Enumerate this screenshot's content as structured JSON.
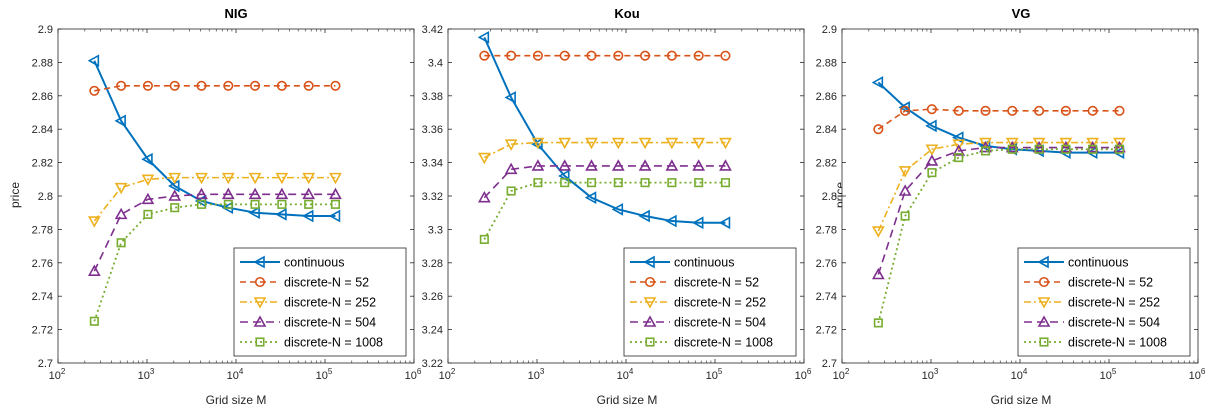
{
  "figure": {
    "background": "#ffffff"
  },
  "series_styles": [
    {
      "name": "continuous",
      "color": "#0072BD",
      "dash": "",
      "marker": "triangle-left",
      "width": 2.0
    },
    {
      "name": "discrete-N = 52",
      "color": "#D95319",
      "dash": "6,4",
      "marker": "circle",
      "width": 1.6
    },
    {
      "name": "discrete-N = 252",
      "color": "#EDB120",
      "dash": "7,3,2,3",
      "marker": "triangle-down",
      "width": 1.6
    },
    {
      "name": "discrete-N = 504",
      "color": "#7E2F8E",
      "dash": "8,5",
      "marker": "triangle-up",
      "width": 1.6
    },
    {
      "name": "discrete-N = 1008",
      "color": "#77AC30",
      "dash": "2,3",
      "marker": "square",
      "width": 1.8
    }
  ],
  "chart_data": [
    {
      "type": "line",
      "title": "NIG",
      "xlabel": "Grid size M",
      "ylabel": "price",
      "xscale": "log",
      "xlim": [
        100,
        1000000
      ],
      "ylim": [
        2.7,
        2.9
      ],
      "xticks": [
        100,
        1000,
        10000,
        100000,
        1000000
      ],
      "xticklabels": [
        "2",
        "3",
        "4",
        "5",
        "6"
      ],
      "yticks": [
        2.7,
        2.72,
        2.74,
        2.76,
        2.78,
        2.8,
        2.82,
        2.84,
        2.86,
        2.88,
        2.9
      ],
      "yticklabels": [
        "2.7",
        "2.72",
        "2.74",
        "2.76",
        "2.78",
        "2.8",
        "2.82",
        "2.84",
        "2.86",
        "2.88",
        "2.9"
      ],
      "grid": false,
      "legend_position": "bottom-right",
      "x": [
        256,
        512,
        1024,
        2048,
        4096,
        8192,
        16384,
        32768,
        65536,
        131072
      ],
      "series": [
        {
          "name": "continuous",
          "values": [
            2.881,
            2.845,
            2.822,
            2.806,
            2.797,
            2.793,
            2.79,
            2.789,
            2.788,
            2.788
          ]
        },
        {
          "name": "discrete-N = 52",
          "values": [
            2.863,
            2.866,
            2.866,
            2.866,
            2.866,
            2.866,
            2.866,
            2.866,
            2.866,
            2.866
          ]
        },
        {
          "name": "discrete-N = 252",
          "values": [
            2.785,
            2.805,
            2.81,
            2.811,
            2.811,
            2.811,
            2.811,
            2.811,
            2.811,
            2.811
          ]
        },
        {
          "name": "discrete-N = 504",
          "values": [
            2.755,
            2.789,
            2.798,
            2.8,
            2.801,
            2.801,
            2.801,
            2.801,
            2.801,
            2.801
          ]
        },
        {
          "name": "discrete-N = 1008",
          "values": [
            2.725,
            2.772,
            2.789,
            2.793,
            2.795,
            2.795,
            2.795,
            2.795,
            2.795,
            2.795
          ]
        }
      ]
    },
    {
      "type": "line",
      "title": "Kou",
      "xlabel": "Grid size M",
      "ylabel": "",
      "xscale": "log",
      "xlim": [
        100,
        1000000
      ],
      "ylim": [
        3.22,
        3.42
      ],
      "xticks": [
        100,
        1000,
        10000,
        100000,
        1000000
      ],
      "xticklabels": [
        "2",
        "3",
        "4",
        "5",
        "6"
      ],
      "yticks": [
        3.22,
        3.24,
        3.26,
        3.28,
        3.3,
        3.32,
        3.34,
        3.36,
        3.38,
        3.4,
        3.42
      ],
      "yticklabels": [
        "3.22",
        "3.24",
        "3.26",
        "3.28",
        "3.3",
        "3.32",
        "3.34",
        "3.36",
        "3.38",
        "3.4",
        "3.42"
      ],
      "grid": false,
      "legend_position": "bottom-right",
      "x": [
        256,
        512,
        1024,
        2048,
        4096,
        8192,
        16384,
        32768,
        65536,
        131072
      ],
      "series": [
        {
          "name": "continuous",
          "values": [
            3.415,
            3.379,
            3.351,
            3.332,
            3.319,
            3.312,
            3.308,
            3.305,
            3.304,
            3.304
          ]
        },
        {
          "name": "discrete-N = 52",
          "values": [
            3.404,
            3.404,
            3.404,
            3.404,
            3.404,
            3.404,
            3.404,
            3.404,
            3.404,
            3.404
          ]
        },
        {
          "name": "discrete-N = 252",
          "values": [
            3.343,
            3.351,
            3.352,
            3.352,
            3.352,
            3.352,
            3.352,
            3.352,
            3.352,
            3.352
          ]
        },
        {
          "name": "discrete-N = 504",
          "values": [
            3.319,
            3.336,
            3.338,
            3.338,
            3.338,
            3.338,
            3.338,
            3.338,
            3.338,
            3.338
          ]
        },
        {
          "name": "discrete-N = 1008",
          "values": [
            3.294,
            3.323,
            3.328,
            3.328,
            3.328,
            3.328,
            3.328,
            3.328,
            3.328,
            3.328
          ]
        }
      ]
    },
    {
      "type": "line",
      "title": "VG",
      "xlabel": "Grid size M",
      "ylabel": "price",
      "xscale": "log",
      "xlim": [
        100,
        1000000
      ],
      "ylim": [
        2.7,
        2.9
      ],
      "xticks": [
        100,
        1000,
        10000,
        100000,
        1000000
      ],
      "xticklabels": [
        "2",
        "3",
        "4",
        "5",
        "6"
      ],
      "yticks": [
        2.7,
        2.72,
        2.74,
        2.76,
        2.78,
        2.8,
        2.82,
        2.84,
        2.86,
        2.88,
        2.9
      ],
      "yticklabels": [
        "2.7",
        "2.72",
        "2.74",
        "2.76",
        "2.78",
        "2.8",
        "2.82",
        "2.84",
        "2.86",
        "2.88",
        "2.9"
      ],
      "grid": false,
      "legend_position": "bottom-right",
      "x": [
        256,
        512,
        1024,
        2048,
        4096,
        8192,
        16384,
        32768,
        65536,
        131072
      ],
      "series": [
        {
          "name": "continuous",
          "values": [
            2.868,
            2.853,
            2.842,
            2.835,
            2.83,
            2.828,
            2.827,
            2.826,
            2.826,
            2.826
          ]
        },
        {
          "name": "discrete-N = 52",
          "values": [
            2.84,
            2.851,
            2.852,
            2.851,
            2.851,
            2.851,
            2.851,
            2.851,
            2.851,
            2.851
          ]
        },
        {
          "name": "discrete-N = 252",
          "values": [
            2.779,
            2.815,
            2.828,
            2.831,
            2.832,
            2.832,
            2.832,
            2.832,
            2.832,
            2.832
          ]
        },
        {
          "name": "discrete-N = 504",
          "values": [
            2.753,
            2.803,
            2.821,
            2.827,
            2.829,
            2.829,
            2.829,
            2.829,
            2.829,
            2.829
          ]
        },
        {
          "name": "discrete-N = 1008",
          "values": [
            2.724,
            2.788,
            2.814,
            2.823,
            2.827,
            2.828,
            2.828,
            2.828,
            2.828,
            2.828
          ]
        }
      ]
    }
  ]
}
